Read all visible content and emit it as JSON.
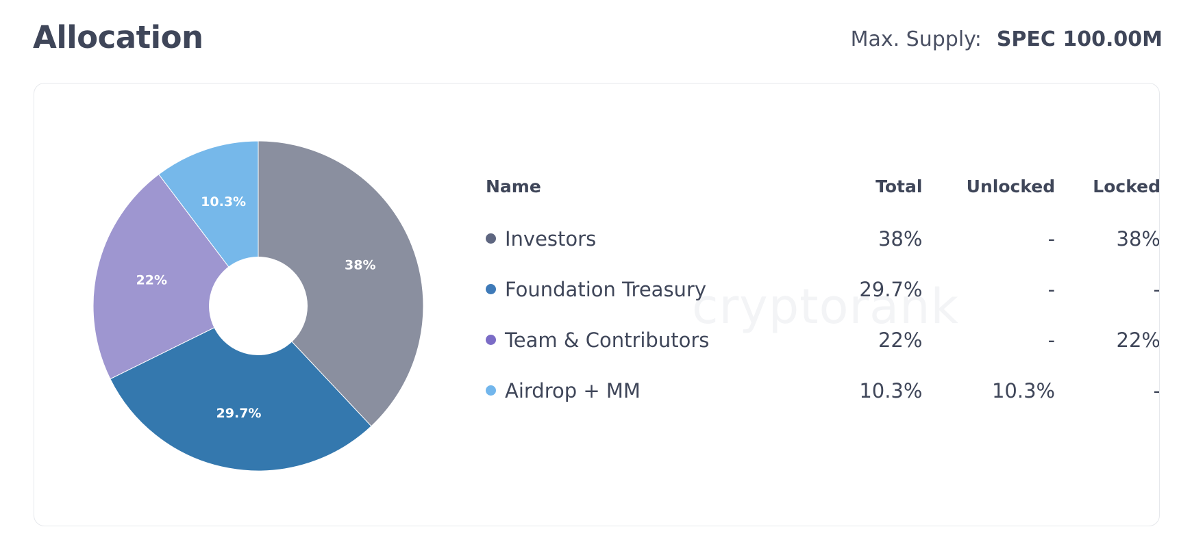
{
  "header": {
    "title": "Allocation",
    "max_supply_label": "Max. Supply:",
    "max_supply_value": "SPEC 100.00M"
  },
  "watermark": "cryptorank",
  "table": {
    "headers": {
      "name": "Name",
      "total": "Total",
      "unlocked": "Unlocked",
      "locked": "Locked"
    },
    "rows": [
      {
        "name": "Investors",
        "total": "38%",
        "unlocked": "-",
        "locked": "38%",
        "dot_color": "#5e6680"
      },
      {
        "name": "Foundation Treasury",
        "total": "29.7%",
        "unlocked": "-",
        "locked": "-",
        "dot_color": "#3e7ab8"
      },
      {
        "name": "Team & Contributors",
        "total": "22%",
        "unlocked": "-",
        "locked": "22%",
        "dot_color": "#7b6cc6"
      },
      {
        "name": "Airdrop + MM",
        "total": "10.3%",
        "unlocked": "10.3%",
        "locked": "-",
        "dot_color": "#72b6ec"
      }
    ]
  },
  "chart_data": {
    "type": "pie",
    "title": "",
    "categories": [
      "Investors",
      "Foundation Treasury",
      "Team & Contributors",
      "Airdrop + MM"
    ],
    "values": [
      38,
      29.7,
      22,
      10.3
    ],
    "labels": [
      "38%",
      "29.7%",
      "22%",
      "10.3%"
    ],
    "colors": [
      "#8a8f9f",
      "#3478ae",
      "#9e96d0",
      "#76b8ea"
    ],
    "donut": true,
    "legend": "right (table)"
  }
}
